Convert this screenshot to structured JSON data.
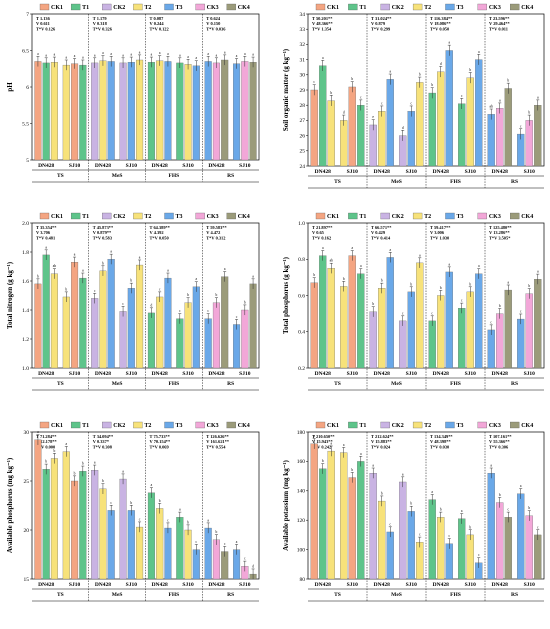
{
  "colors": {
    "CK1": "#f4a582",
    "T1": "#5ec48a",
    "CK2": "#c9b3e3",
    "T2": "#f7e27a",
    "T3": "#6aa8e8",
    "CK3": "#f2a7d8",
    "CK4": "#9b9b7a"
  },
  "legend": [
    "CK1",
    "T1",
    "CK2",
    "T2",
    "T3",
    "CK3",
    "CK4"
  ],
  "chart_data": [
    {
      "type": "bar",
      "ylabel": "pH",
      "ylim": [
        5.0,
        7.0
      ],
      "yticks": [
        5.0,
        5.5,
        6.0,
        6.5,
        7.0
      ],
      "groups": [
        "TS",
        "MeS",
        "FHS",
        "RS"
      ],
      "subgroups": [
        "DN428",
        "SJ10"
      ],
      "values": [
        [
          [
            6.35,
            6.33,
            6.34
          ],
          [
            6.3,
            6.32,
            6.3
          ]
        ],
        [
          [
            6.33,
            6.36,
            6.35
          ],
          [
            6.33,
            6.34,
            6.37
          ]
        ],
        [
          [
            6.34,
            6.36,
            6.35
          ],
          [
            6.33,
            6.31,
            6.29
          ]
        ],
        [
          [
            6.35,
            6.33,
            6.37
          ],
          [
            6.32,
            6.35,
            6.34
          ]
        ]
      ],
      "letters": [
        [
          [
            "a",
            "a",
            "a"
          ],
          [
            "a",
            "a",
            "a"
          ]
        ],
        [
          [
            "a",
            "a",
            "a"
          ],
          [
            "a",
            "a",
            "a"
          ]
        ],
        [
          [
            "a",
            "a",
            "a"
          ],
          [
            "a",
            "a",
            "a"
          ]
        ],
        [
          [
            "a",
            "a",
            "a"
          ],
          [
            "a",
            "a",
            "a"
          ]
        ]
      ],
      "stats": [
        [
          "T 1.136",
          "V 0.611",
          "T*V 0.126"
        ],
        [
          "T 1.179",
          "V 0.318",
          "T*V 0.326"
        ],
        [
          "T 0.087",
          "V 0.244",
          "T*V 0.122"
        ],
        [
          "T 0.624",
          "V 0.150",
          "T*V 0.036"
        ]
      ]
    },
    {
      "type": "bar",
      "ylabel": "Soil organic matter (g kg⁻¹)",
      "ylim": [
        24,
        34
      ],
      "yticks": [
        24,
        25,
        26,
        27,
        28,
        29,
        30,
        31,
        32,
        33,
        34
      ],
      "groups": [
        "TS",
        "MeS",
        "FHS",
        "RS"
      ],
      "subgroups": [
        "DN428",
        "SJ10"
      ],
      "values": [
        [
          [
            29.0,
            30.6,
            28.3
          ],
          [
            27.0,
            29.2,
            28.0
          ]
        ],
        [
          [
            26.7,
            27.6,
            29.7
          ],
          [
            26.0,
            27.6,
            29.5
          ]
        ],
        [
          [
            28.8,
            30.2,
            31.6
          ],
          [
            28.1,
            29.8,
            31.0
          ]
        ],
        [
          [
            27.4,
            27.8,
            29.1
          ],
          [
            26.1,
            27.0,
            28.0
          ]
        ]
      ],
      "letters": [
        [
          [
            "c",
            "a",
            "b"
          ],
          [
            "d",
            "b",
            "c"
          ]
        ],
        [
          [
            "e",
            "c",
            "a"
          ],
          [
            "d",
            "c",
            "b"
          ]
        ],
        [
          [
            "b",
            "d",
            "a"
          ],
          [
            "c",
            "b",
            "a"
          ]
        ],
        [
          [
            "ab",
            "a",
            "b"
          ],
          [
            "c",
            "b",
            "a"
          ]
        ]
      ],
      "stats": [
        [
          "T 50.201**",
          "V 48.366**",
          "T*V 1.354"
        ],
        [
          "T 31.024**",
          "V 0.879",
          "T*V 0.299"
        ],
        [
          "T 116.384**",
          "V 18.086**",
          "T*V 0.050"
        ],
        [
          "T 23.596**",
          "V 29.464**",
          "T*V 0.011"
        ]
      ]
    },
    {
      "type": "bar",
      "ylabel": "Total nitrogen (g kg⁻¹)",
      "ylim": [
        1.0,
        2.0
      ],
      "yticks": [
        1.0,
        1.2,
        1.4,
        1.6,
        1.8,
        2.0
      ],
      "groups": [
        "TS",
        "MeS",
        "FHS",
        "RS"
      ],
      "subgroups": [
        "DN428",
        "SJ10"
      ],
      "values": [
        [
          [
            1.58,
            1.78,
            1.65
          ],
          [
            1.49,
            1.73,
            1.62
          ]
        ],
        [
          [
            1.48,
            1.67,
            1.75
          ],
          [
            1.39,
            1.55,
            1.71
          ]
        ],
        [
          [
            1.38,
            1.49,
            1.62
          ],
          [
            1.34,
            1.45,
            1.56
          ]
        ],
        [
          [
            1.34,
            1.45,
            1.63
          ],
          [
            1.3,
            1.4,
            1.58
          ]
        ]
      ],
      "letters": [
        [
          [
            "b",
            "a",
            "ab"
          ],
          [
            "b",
            "a",
            "a"
          ]
        ],
        [
          [
            "c",
            "b",
            "a"
          ],
          [
            "c",
            "b",
            "a"
          ]
        ],
        [
          [
            "d",
            "c",
            "a"
          ],
          [
            "c",
            "b",
            "a"
          ]
        ],
        [
          [
            "c",
            "b",
            "a"
          ],
          [
            "c",
            "b",
            "a"
          ]
        ]
      ],
      "stats": [
        [
          "T 35.354**",
          "V 3.706",
          "T*V 0.481"
        ],
        [
          "T 45.873**",
          "V 0.879**",
          "T*V 0.583"
        ],
        [
          "T 64.389**",
          "V 4.392",
          "T*V 0.050"
        ],
        [
          "T 59.583**",
          "V 4.472",
          "T*V 0.312"
        ]
      ]
    },
    {
      "type": "bar",
      "ylabel": "Total phosphorus (g kg⁻¹)",
      "ylim": [
        0.2,
        1.0
      ],
      "yticks": [
        0.2,
        0.4,
        0.6,
        0.8,
        1.0
      ],
      "groups": [
        "TS",
        "MeS",
        "FHS",
        "RS"
      ],
      "subgroups": [
        "DN428",
        "SJ10"
      ],
      "values": [
        [
          [
            0.67,
            0.82,
            0.75
          ],
          [
            0.65,
            0.82,
            0.72
          ]
        ],
        [
          [
            0.51,
            0.64,
            0.81
          ],
          [
            0.46,
            0.62,
            0.78
          ]
        ],
        [
          [
            0.46,
            0.6,
            0.73
          ],
          [
            0.53,
            0.62,
            0.72
          ]
        ],
        [
          [
            0.41,
            0.5,
            0.63
          ],
          [
            0.47,
            0.61,
            0.69
          ]
        ]
      ],
      "letters": [
        [
          [
            "b",
            "a",
            "ab"
          ],
          [
            "b",
            "a",
            "a"
          ]
        ],
        [
          [
            "b",
            "b",
            "a"
          ],
          [
            "c",
            "b",
            "a"
          ]
        ],
        [
          [
            "c",
            "b",
            "a"
          ],
          [
            "c",
            "b",
            "a"
          ]
        ],
        [
          [
            "c",
            "b",
            "a"
          ],
          [
            "c",
            "b",
            "a"
          ]
        ]
      ],
      "stats": [
        [
          "T 21.897**",
          "V 0.65",
          "T*V 0.162"
        ],
        [
          "T 66.571**",
          "V 0.429",
          "T*V 0.414"
        ],
        [
          "T 59.417**",
          "V 3.006",
          "T*V 1.030"
        ],
        [
          "T 125.480**",
          "V 13.286**",
          "T*V 3.505*"
        ]
      ]
    },
    {
      "type": "bar",
      "ylabel": "Available phosphorus (mg kg⁻¹)",
      "ylim": [
        15,
        30
      ],
      "yticks": [
        15,
        20,
        25,
        30
      ],
      "groups": [
        "TS",
        "MeS",
        "FHS",
        "RS"
      ],
      "subgroups": [
        "DN428",
        "SJ10"
      ],
      "values": [
        [
          [
            29.2,
            26.2,
            27.3
          ],
          [
            28.0,
            25.0,
            26.0
          ]
        ],
        [
          [
            26.1,
            24.2,
            22.0
          ],
          [
            25.2,
            22.0,
            20.3
          ]
        ],
        [
          [
            23.8,
            22.2,
            20.2
          ],
          [
            21.3,
            20.0,
            18.0
          ]
        ],
        [
          [
            20.2,
            19.0,
            17.8
          ],
          [
            18.0,
            16.3,
            15.5
          ]
        ]
      ],
      "letters": [
        [
          [
            "a",
            "b",
            "b"
          ],
          [
            "a",
            "b",
            "b"
          ]
        ],
        [
          [
            "a",
            "b",
            "c"
          ],
          [
            "a",
            "b",
            "c"
          ]
        ],
        [
          [
            "a",
            "b",
            "c"
          ],
          [
            "a",
            "b",
            "c"
          ]
        ],
        [
          [
            "a",
            "b",
            "c"
          ],
          [
            "a",
            "c",
            "d"
          ]
        ]
      ],
      "stats": [
        [
          "T 71.284**",
          "V 12.178**",
          "T*V 0.000"
        ],
        [
          "T 34.094**",
          "V 0.337*",
          "T*V 0.308"
        ],
        [
          "T 75.733**",
          "V 70.154**",
          "T*V 0.069"
        ],
        [
          "T 126.626**",
          "V 161.621**",
          "T*V 0.554"
        ]
      ]
    },
    {
      "type": "bar",
      "ylabel": "Available potassium (mg kg⁻¹)",
      "ylim": [
        80,
        180
      ],
      "yticks": [
        80,
        100,
        120,
        140,
        160,
        180
      ],
      "groups": [
        "TS",
        "MeS",
        "FHS",
        "RS"
      ],
      "subgroups": [
        "DN428",
        "SJ10"
      ],
      "values": [
        [
          [
            172,
            155,
            167
          ],
          [
            166,
            149,
            160
          ]
        ],
        [
          [
            152,
            133,
            112
          ],
          [
            146,
            126,
            105
          ]
        ],
        [
          [
            134,
            122,
            104
          ],
          [
            121,
            110,
            91
          ]
        ],
        [
          [
            152,
            132,
            122
          ],
          [
            138,
            123,
            110
          ]
        ]
      ],
      "letters": [
        [
          [
            "a",
            "b",
            "a"
          ],
          [
            "a",
            "b",
            "a"
          ]
        ],
        [
          [
            "a",
            "b",
            "c"
          ],
          [
            "a",
            "b",
            "c"
          ]
        ],
        [
          [
            "a",
            "b",
            "c"
          ],
          [
            "a",
            "b",
            "c"
          ]
        ],
        [
          [
            "a",
            "b",
            "c"
          ],
          [
            "a",
            "b",
            "c"
          ]
        ]
      ],
      "stats": [
        [
          "T 210.650**",
          "V 15.943**",
          "T*V 0.242"
        ],
        [
          "T 212.624**",
          "V 15.883**",
          "T*V 0.024"
        ],
        [
          "T 134.349**",
          "V 48.398**",
          "T*V 0.030"
        ],
        [
          "T 107.161**",
          "V 55.366**",
          "T*V 0.306"
        ]
      ]
    }
  ]
}
